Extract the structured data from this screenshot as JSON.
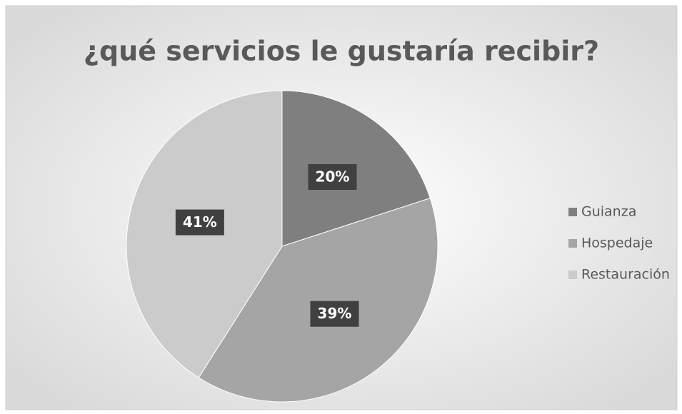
{
  "chart_data": {
    "type": "pie",
    "title": "¿qué servicios le gustaría recibir?",
    "categories": [
      "Guianza",
      "Hospedaje",
      "Restauración"
    ],
    "values": [
      20,
      39,
      41
    ],
    "value_labels": [
      "20%",
      "39%",
      "41%"
    ],
    "colors": [
      "#7f7f7f",
      "#a5a5a5",
      "#cbcbcb"
    ],
    "legend": "right"
  }
}
